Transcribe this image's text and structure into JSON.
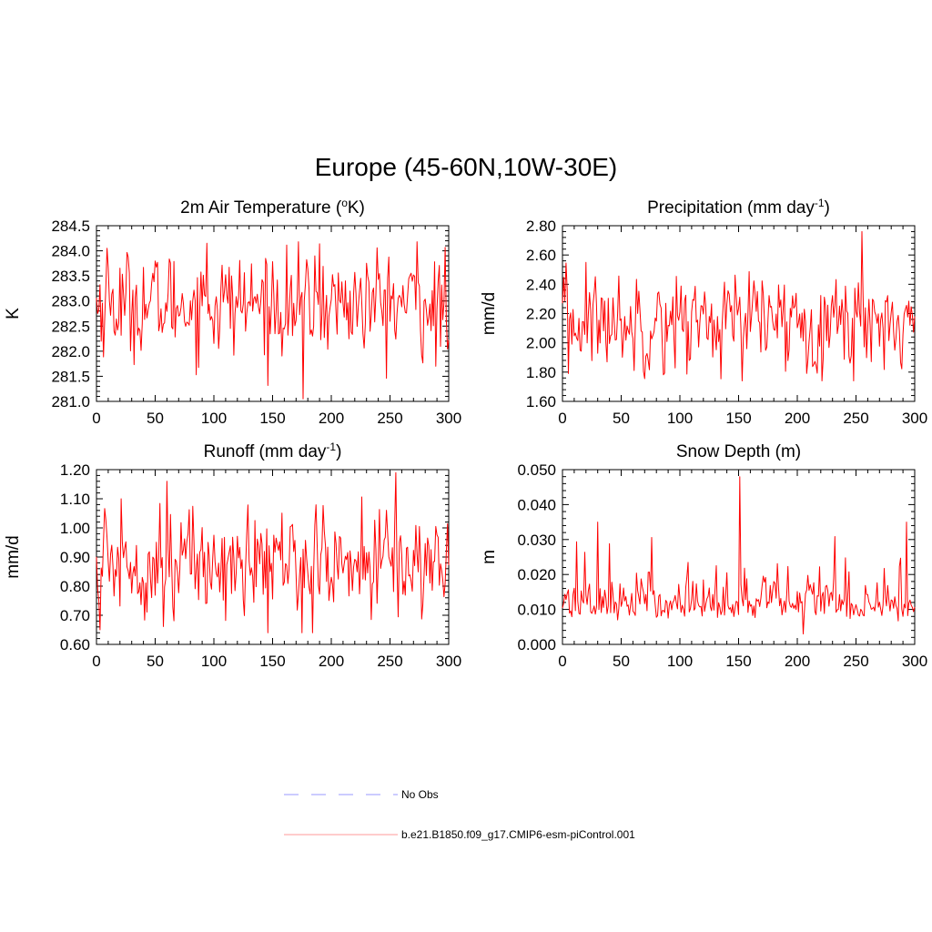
{
  "figure": {
    "title": "Europe (45-60N,10W-30E)"
  },
  "legend": {
    "entries": [
      {
        "label": "No Obs",
        "color": "#9999ff",
        "style": "dashed"
      },
      {
        "label": "b.e21.B1850.f09_g17.CMIP6-esm-piControl.001",
        "color": "#ff0000",
        "style": "solid"
      }
    ],
    "placement": "bottom-center"
  },
  "chart_data": [
    {
      "type": "line",
      "title": "2m Air Temperature (°K)",
      "title_base": "2m Air Temperature (",
      "title_sup": "o",
      "title_tail": "K)",
      "xlabel": "",
      "ylabel": "K",
      "xlim": [
        0,
        300
      ],
      "ylim": [
        281.0,
        284.5
      ],
      "xticks": [
        0,
        50,
        100,
        150,
        200,
        250,
        300
      ],
      "yticks": [
        281.0,
        281.5,
        282.0,
        282.5,
        283.0,
        283.5,
        284.0,
        284.5
      ],
      "ytick_labels": [
        "281.0",
        "281.5",
        "282.0",
        "282.5",
        "283.0",
        "283.5",
        "284.0",
        "284.5"
      ],
      "series": [
        {
          "name": "b.e21.B1850.f09_g17.CMIP6-esm-piControl.001",
          "color": "#ff0000",
          "mean": 282.95,
          "sd": 0.5,
          "min": 281.05,
          "max": 284.18,
          "peaks": [
            [
              9,
              284.05
            ],
            [
              94,
              284.15
            ],
            [
              176,
              281.05
            ],
            [
              190,
              284.14
            ],
            [
              273,
              284.18
            ],
            [
              289,
              281.7
            ]
          ]
        }
      ]
    },
    {
      "type": "line",
      "title": "Precipitation (mm day-1)",
      "title_base": "Precipitation (mm day",
      "title_sup": "-1",
      "title_tail": ")",
      "xlabel": "",
      "ylabel": "mm/d",
      "xlim": [
        0,
        300
      ],
      "ylim": [
        1.6,
        2.8
      ],
      "xticks": [
        0,
        50,
        100,
        150,
        200,
        250,
        300
      ],
      "yticks": [
        1.6,
        1.8,
        2.0,
        2.2,
        2.4,
        2.6,
        2.8
      ],
      "ytick_labels": [
        "1.60",
        "1.80",
        "2.00",
        "2.20",
        "2.40",
        "2.60",
        "2.80"
      ],
      "series": [
        {
          "name": "b.e21.B1850.f09_g17.CMIP6-esm-piControl.001",
          "color": "#ff0000",
          "mean": 2.15,
          "sd": 0.16,
          "min": 1.74,
          "max": 2.76,
          "peaks": [
            [
              5,
              1.79
            ],
            [
              20,
              2.55
            ],
            [
              153,
              1.74
            ],
            [
              255,
              2.76
            ]
          ]
        }
      ]
    },
    {
      "type": "line",
      "title": "Runoff (mm day-1)",
      "title_base": "Runoff (mm day",
      "title_sup": "-1",
      "title_tail": ")",
      "xlabel": "",
      "ylabel": "mm/d",
      "xlim": [
        0,
        300
      ],
      "ylim": [
        0.6,
        1.2
      ],
      "xticks": [
        0,
        50,
        100,
        150,
        200,
        250,
        300
      ],
      "yticks": [
        0.6,
        0.7,
        0.8,
        0.9,
        1.0,
        1.1,
        1.2
      ],
      "ytick_labels": [
        "0.60",
        "0.70",
        "0.80",
        "0.90",
        "1.00",
        "1.10",
        "1.20"
      ],
      "series": [
        {
          "name": "b.e21.B1850.f09_g17.CMIP6-esm-piControl.001",
          "color": "#ff0000",
          "mean": 0.88,
          "sd": 0.09,
          "min": 0.64,
          "max": 1.19,
          "peaks": [
            [
              3,
              0.65
            ],
            [
              21,
              1.1
            ],
            [
              60,
              1.16
            ],
            [
              146,
              0.64
            ],
            [
              255,
              1.19
            ]
          ]
        }
      ]
    },
    {
      "type": "line",
      "title": "Snow Depth (m)",
      "title_base": "Snow Depth (m)",
      "title_sup": "",
      "title_tail": "",
      "xlabel": "",
      "ylabel": "m",
      "xlim": [
        0,
        300
      ],
      "ylim": [
        0.0,
        0.05
      ],
      "xticks": [
        0,
        50,
        100,
        150,
        200,
        250,
        300
      ],
      "yticks": [
        0.0,
        0.01,
        0.02,
        0.03,
        0.04,
        0.05
      ],
      "ytick_labels": [
        "0.000",
        "0.010",
        "0.020",
        "0.030",
        "0.040",
        "0.050"
      ],
      "series": [
        {
          "name": "b.e21.B1850.f09_g17.CMIP6-esm-piControl.001",
          "color": "#ff0000",
          "mean": 0.012,
          "sd": 0.006,
          "min": 0.003,
          "max": 0.048,
          "peaks": [
            [
              30,
              0.035
            ],
            [
              151,
              0.048
            ],
            [
              205,
              0.003
            ],
            [
              293,
              0.035
            ]
          ]
        }
      ]
    }
  ]
}
